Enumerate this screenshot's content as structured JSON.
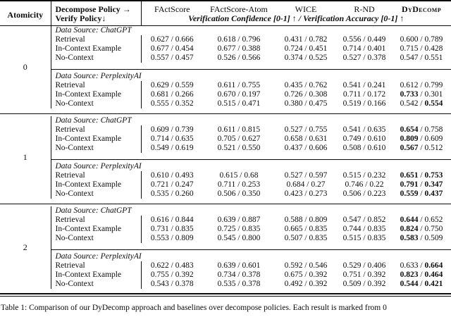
{
  "header": {
    "atomicity": "Atomicity",
    "decompose": "Decompose Policy →",
    "verify": "Verify Policy↓",
    "columns": [
      "FActScore",
      "FActScore-Atom",
      "WICE",
      "R-ND",
      "DyDecomp"
    ],
    "subheader": "Verification Confidence [0-1] ↑ / Verification Accuracy [0-1] ↑"
  },
  "value_separator": " / ",
  "chart_data": {
    "type": "table",
    "title": "Verification Confidence [0-1] ↑ / Verification Accuracy [0-1] ↑",
    "columns": [
      "FActScore",
      "FActScore-Atom",
      "WICE",
      "R-ND",
      "DyDecomp"
    ]
  },
  "groups": [
    {
      "atomicity": "0",
      "blocks": [
        {
          "source": "Data Source: ChatGPT",
          "rows": [
            {
              "policy": "Retrieval",
              "cells": [
                [
                  "0.627",
                  "0.666",
                  0,
                  0
                ],
                [
                  "0.618",
                  "0.796",
                  0,
                  0
                ],
                [
                  "0.431",
                  "0.782",
                  0,
                  0
                ],
                [
                  "0.556",
                  "0.449",
                  0,
                  0
                ],
                [
                  "0.600",
                  "0.789",
                  0,
                  0
                ]
              ]
            },
            {
              "policy": "In-Context Example",
              "cells": [
                [
                  "0.677",
                  "0.454",
                  0,
                  0
                ],
                [
                  "0.677",
                  "0.388",
                  0,
                  0
                ],
                [
                  "0.724",
                  "0.451",
                  0,
                  0
                ],
                [
                  "0.714",
                  "0.401",
                  0,
                  0
                ],
                [
                  "0.715",
                  "0.428",
                  0,
                  0
                ]
              ]
            },
            {
              "policy": "No-Context",
              "cells": [
                [
                  "0.557",
                  "0.457",
                  0,
                  0
                ],
                [
                  "0.526",
                  "0.566",
                  0,
                  0
                ],
                [
                  "0.374",
                  "0.525",
                  0,
                  0
                ],
                [
                  "0.527",
                  "0.378",
                  0,
                  0
                ],
                [
                  "0.547",
                  "0.551",
                  0,
                  0
                ]
              ]
            }
          ]
        },
        {
          "source": "Data Source: PerplexityAI",
          "rows": [
            {
              "policy": "Retrieval",
              "cells": [
                [
                  "0.629",
                  "0.559",
                  0,
                  0
                ],
                [
                  "0.611",
                  "0.755",
                  0,
                  0
                ],
                [
                  "0.435",
                  "0.762",
                  0,
                  0
                ],
                [
                  "0.541",
                  "0.241",
                  0,
                  0
                ],
                [
                  "0.612",
                  "0.799",
                  0,
                  0
                ]
              ]
            },
            {
              "policy": "In-Context Example",
              "cells": [
                [
                  "0.681",
                  "0.266",
                  0,
                  0
                ],
                [
                  "0.670",
                  "0.197",
                  0,
                  0
                ],
                [
                  "0.726",
                  "0.308",
                  0,
                  0
                ],
                [
                  "0.711",
                  "0.172",
                  0,
                  0
                ],
                [
                  "0.733",
                  "0.301",
                  1,
                  0
                ]
              ]
            },
            {
              "policy": "No-Context",
              "cells": [
                [
                  "0.555",
                  "0.352",
                  0,
                  0
                ],
                [
                  "0.515",
                  "0.471",
                  0,
                  0
                ],
                [
                  "0.380",
                  "0.475",
                  0,
                  0
                ],
                [
                  "0.519",
                  "0.166",
                  0,
                  0
                ],
                [
                  "0.542",
                  "0.554",
                  0,
                  1
                ]
              ]
            }
          ]
        }
      ]
    },
    {
      "atomicity": "1",
      "blocks": [
        {
          "source": "Data Source: ChatGPT",
          "rows": [
            {
              "policy": "Retrieval",
              "cells": [
                [
                  "0.609",
                  "0.739",
                  0,
                  0
                ],
                [
                  "0.611",
                  "0.815",
                  0,
                  0
                ],
                [
                  "0.527",
                  "0.755",
                  0,
                  0
                ],
                [
                  "0.541",
                  "0.635",
                  0,
                  0
                ],
                [
                  "0.654",
                  "0.758",
                  1,
                  0
                ]
              ]
            },
            {
              "policy": "In-Context Example",
              "cells": [
                [
                  "0.714",
                  "0.635",
                  0,
                  0
                ],
                [
                  "0.705",
                  "0.627",
                  0,
                  0
                ],
                [
                  "0.658",
                  "0.631",
                  0,
                  0
                ],
                [
                  "0.749",
                  "0.610",
                  0,
                  0
                ],
                [
                  "0.809",
                  "0.609",
                  1,
                  0
                ]
              ]
            },
            {
              "policy": "No-Context",
              "cells": [
                [
                  "0.549",
                  "0.619",
                  0,
                  0
                ],
                [
                  "0.521",
                  "0.550",
                  0,
                  0
                ],
                [
                  "0.437",
                  "0.606",
                  0,
                  0
                ],
                [
                  "0.508",
                  "0.610",
                  0,
                  0
                ],
                [
                  "0.567",
                  "0.512",
                  1,
                  0
                ]
              ]
            }
          ]
        },
        {
          "source": "Data Source: PerplexityAI",
          "rows": [
            {
              "policy": "Retrieval",
              "cells": [
                [
                  "0.610",
                  "0.493",
                  0,
                  0
                ],
                [
                  "0.615",
                  "0.68",
                  0,
                  0
                ],
                [
                  "0.527",
                  "0.597",
                  0,
                  0
                ],
                [
                  "0.515",
                  "0.232",
                  0,
                  0
                ],
                [
                  "0.651",
                  "0.753",
                  1,
                  1
                ]
              ]
            },
            {
              "policy": "In-Context Example",
              "cells": [
                [
                  "0.721",
                  "0.247",
                  0,
                  0
                ],
                [
                  "0.711",
                  "0.253",
                  0,
                  0
                ],
                [
                  "0.684",
                  "0.27",
                  0,
                  0
                ],
                [
                  "0.746",
                  "0.22",
                  0,
                  0
                ],
                [
                  "0.791",
                  "0.347",
                  1,
                  1
                ]
              ]
            },
            {
              "policy": "No-Context",
              "cells": [
                [
                  "0.535",
                  "0.260",
                  0,
                  0
                ],
                [
                  "0.506",
                  "0.350",
                  0,
                  0
                ],
                [
                  "0.423",
                  "0.273",
                  0,
                  0
                ],
                [
                  "0.506",
                  "0.223",
                  0,
                  0
                ],
                [
                  "0.559",
                  "0.437",
                  1,
                  1
                ]
              ]
            }
          ]
        }
      ]
    },
    {
      "atomicity": "2",
      "blocks": [
        {
          "source": "Data Source: ChatGPT",
          "rows": [
            {
              "policy": "Retrieval",
              "cells": [
                [
                  "0.616",
                  "0.844",
                  0,
                  0
                ],
                [
                  "0.639",
                  "0.887",
                  0,
                  0
                ],
                [
                  "0.588",
                  "0.809",
                  0,
                  0
                ],
                [
                  "0.547",
                  "0.852",
                  0,
                  0
                ],
                [
                  "0.644",
                  "0.652",
                  1,
                  0
                ]
              ]
            },
            {
              "policy": "In-Context Example",
              "cells": [
                [
                  "0.731",
                  "0.835",
                  0,
                  0
                ],
                [
                  "0.725",
                  "0.835",
                  0,
                  0
                ],
                [
                  "0.665",
                  "0.835",
                  0,
                  0
                ],
                [
                  "0.744",
                  "0.835",
                  0,
                  0
                ],
                [
                  "0.824",
                  "0.750",
                  1,
                  0
                ]
              ]
            },
            {
              "policy": "No-Context",
              "cells": [
                [
                  "0.553",
                  "0.809",
                  0,
                  0
                ],
                [
                  "0.545",
                  "0.800",
                  0,
                  0
                ],
                [
                  "0.507",
                  "0.835",
                  0,
                  0
                ],
                [
                  "0.515",
                  "0.835",
                  0,
                  0
                ],
                [
                  "0.583",
                  "0.509",
                  1,
                  0
                ]
              ]
            }
          ]
        },
        {
          "source": "Data Source: PerplexityAI",
          "rows": [
            {
              "policy": "Retrieval",
              "cells": [
                [
                  "0.622",
                  "0.483",
                  0,
                  0
                ],
                [
                  "0.639",
                  "0.601",
                  0,
                  0
                ],
                [
                  "0.592",
                  "0.546",
                  0,
                  0
                ],
                [
                  "0.529",
                  "0.406",
                  0,
                  0
                ],
                [
                  "0.633",
                  "0.664",
                  0,
                  1
                ]
              ]
            },
            {
              "policy": "In-Context Example",
              "cells": [
                [
                  "0.755",
                  "0.392",
                  0,
                  0
                ],
                [
                  "0.734",
                  "0.378",
                  0,
                  0
                ],
                [
                  "0.675",
                  "0.392",
                  0,
                  0
                ],
                [
                  "0.751",
                  "0.392",
                  0,
                  0
                ],
                [
                  "0.823",
                  "0.464",
                  1,
                  1
                ]
              ]
            },
            {
              "policy": "No-Context",
              "cells": [
                [
                  "0.543",
                  "0.378",
                  0,
                  0
                ],
                [
                  "0.535",
                  "0.378",
                  0,
                  0
                ],
                [
                  "0.492",
                  "0.392",
                  0,
                  0
                ],
                [
                  "0.509",
                  "0.392",
                  0,
                  0
                ],
                [
                  "0.544",
                  "0.421",
                  1,
                  1
                ]
              ]
            }
          ]
        }
      ]
    }
  ],
  "caption": "Table 1: Comparison of our DyDecomp approach and baselines over decompose policies. Each result is marked from 0"
}
